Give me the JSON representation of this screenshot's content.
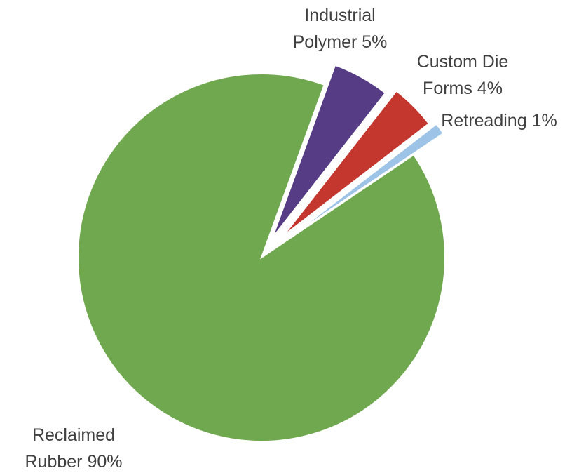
{
  "chart_data": {
    "type": "pie",
    "title": "",
    "exploded": true,
    "start_angle_deg": 20,
    "direction": "clockwise",
    "slices": [
      {
        "label_lines": [
          "Industrial",
          "Polymer 5%"
        ],
        "category": "Industrial Polymer",
        "value": 5,
        "color": "#553C85"
      },
      {
        "label_lines": [
          "Custom Die",
          "Forms 4%"
        ],
        "category": "Custom Die Forms",
        "value": 4,
        "color": "#C3372F"
      },
      {
        "label_lines": [
          "Retreading 1%"
        ],
        "category": "Retreading",
        "value": 1,
        "color": "#9DC3E6"
      },
      {
        "label_lines": [
          "Reclaimed",
          "Rubber 90%"
        ],
        "category": "Reclaimed Rubber",
        "value": 90,
        "color": "#70A84F"
      }
    ]
  }
}
